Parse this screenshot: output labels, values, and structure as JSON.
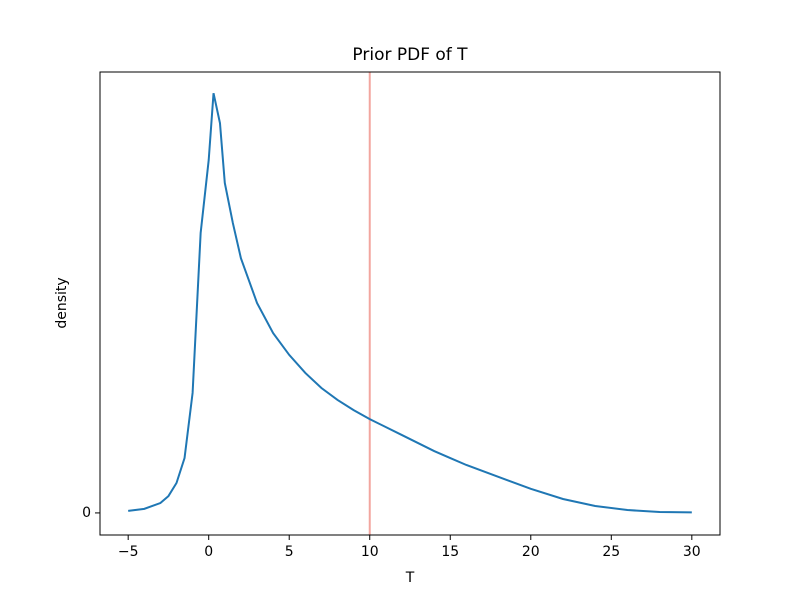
{
  "chart_data": {
    "type": "line",
    "title": "Prior PDF of T",
    "xlabel": "T",
    "ylabel": "density",
    "x": [
      -5,
      -4,
      -3,
      -2.5,
      -2,
      -1.5,
      -1,
      -0.5,
      0,
      0.3,
      0.7,
      1,
      1.5,
      2,
      3,
      4,
      5,
      6,
      7,
      8,
      9,
      10,
      12,
      14,
      15,
      16,
      18,
      20,
      22,
      24,
      26,
      28,
      30
    ],
    "series": [
      {
        "color": "#1f77b4",
        "values": [
          0.0007,
          0.0014,
          0.0034,
          0.0058,
          0.0103,
          0.0189,
          0.0413,
          0.0964,
          0.1215,
          0.1445,
          0.1342,
          0.1136,
          0.0998,
          0.0877,
          0.0723,
          0.0619,
          0.0544,
          0.0482,
          0.043,
          0.0389,
          0.0354,
          0.0323,
          0.0268,
          0.0213,
          0.0189,
          0.0165,
          0.0124,
          0.0083,
          0.0048,
          0.0024,
          0.001,
          0.0003,
          0.0002
        ]
      }
    ],
    "vline": {
      "x": 10,
      "color": "#f2a69f"
    },
    "xlim": [
      -6.75,
      31.75
    ],
    "xticks": [
      {
        "value": -5,
        "label": "−5"
      },
      0,
      5,
      10,
      15,
      20,
      25,
      30
    ],
    "ylim": [
      -0.0076,
      0.1518
    ],
    "yticks": [
      0
    ]
  }
}
